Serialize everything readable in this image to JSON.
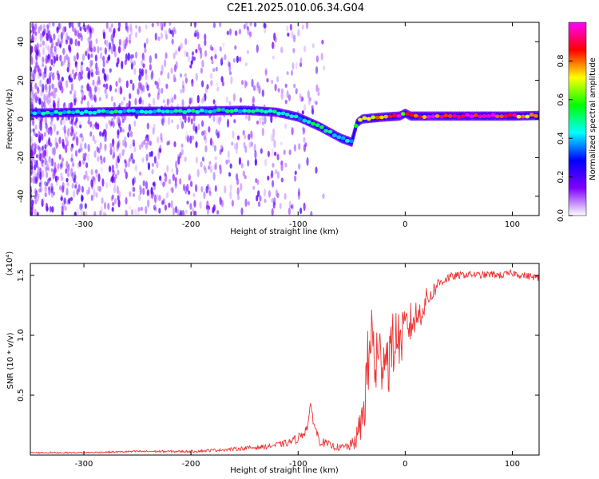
{
  "title": "C2E1.2025.010.06.34.G04",
  "chart_data": [
    {
      "type": "heatmap",
      "xlabel": "Height of straight line (km)",
      "ylabel": "Frequency (Hz)",
      "xlim": [
        -350,
        125
      ],
      "ylim": [
        -50,
        50
      ],
      "x_ticks": [
        -300,
        -200,
        -100,
        0,
        100
      ],
      "y_ticks": [
        -40,
        -20,
        0,
        20,
        40
      ],
      "colorbar": {
        "label": "Normalized spectral amplitude",
        "range": [
          0,
          1
        ],
        "ticks": [
          "0.0",
          "0.2",
          "0.4",
          "0.6",
          "0.8"
        ],
        "colors": [
          "#ffffff",
          "#8000ff",
          "#0000ff",
          "#00ffff",
          "#00ff00",
          "#ffff00",
          "#ff0000",
          "#ff00ff"
        ]
      },
      "ridge": {
        "x": [
          -350,
          -300,
          -250,
          -200,
          -150,
          -120,
          -100,
          -90,
          -80,
          -70,
          -60,
          -50,
          -45,
          -40,
          -20,
          -5,
          0,
          5,
          50,
          100,
          125
        ],
        "y": [
          3,
          3.5,
          4,
          4,
          4.5,
          3.5,
          1,
          -1.5,
          -4,
          -7,
          -10,
          -12,
          -2,
          0,
          1,
          1.5,
          3,
          1.5,
          1.5,
          1.5,
          1.8
        ],
        "amp": [
          0.45,
          0.5,
          0.45,
          0.5,
          0.5,
          0.5,
          0.45,
          0.5,
          0.55,
          0.5,
          0.45,
          0.4,
          0.55,
          0.8,
          0.9,
          0.95,
          0.7,
          0.95,
          0.95,
          0.95,
          0.85
        ]
      },
      "noise_region": [
        -350,
        -75
      ]
    },
    {
      "type": "line",
      "xlabel": "Height of straight line (km)",
      "ylabel": "SNR (10 * v/v)",
      "scale_label": "(x10⁴)",
      "xlim": [
        -350,
        125
      ],
      "ylim": [
        0,
        1.6
      ],
      "x_ticks": [
        -300,
        -200,
        -100,
        0,
        100
      ],
      "y_ticks": [
        0.5,
        1.0,
        1.5
      ],
      "y_tick_labels": [
        "0.5",
        "1.0",
        "1.5"
      ],
      "series": [
        {
          "color": "#ee3333",
          "x": [
            -350,
            -300,
            -250,
            -200,
            -160,
            -130,
            -110,
            -100,
            -92,
            -88,
            -84,
            -80,
            -70,
            -60,
            -50,
            -45,
            -40,
            -35,
            -32,
            -28,
            -24,
            -20,
            -16,
            -12,
            -8,
            -4,
            0,
            5,
            10,
            15,
            20,
            25,
            30,
            35,
            40,
            50,
            60,
            70,
            80,
            90,
            100,
            110,
            125
          ],
          "y": [
            0.02,
            0.02,
            0.03,
            0.03,
            0.05,
            0.07,
            0.1,
            0.14,
            0.22,
            0.4,
            0.22,
            0.12,
            0.08,
            0.06,
            0.08,
            0.15,
            0.3,
            0.7,
            1.0,
            0.8,
            0.75,
            0.9,
            0.8,
            0.9,
            1.0,
            0.95,
            1.05,
            1.1,
            1.15,
            1.2,
            1.3,
            1.35,
            1.42,
            1.46,
            1.48,
            1.5,
            1.51,
            1.5,
            1.51,
            1.5,
            1.52,
            1.5,
            1.48
          ],
          "noise": [
            0.006,
            0.006,
            0.008,
            0.01,
            0.015,
            0.02,
            0.03,
            0.04,
            0.05,
            0.05,
            0.05,
            0.04,
            0.03,
            0.03,
            0.05,
            0.1,
            0.18,
            0.35,
            0.4,
            0.4,
            0.35,
            0.3,
            0.3,
            0.28,
            0.25,
            0.22,
            0.2,
            0.18,
            0.15,
            0.12,
            0.1,
            0.08,
            0.06,
            0.05,
            0.04,
            0.03,
            0.03,
            0.03,
            0.03,
            0.03,
            0.03,
            0.03,
            0.03
          ]
        }
      ]
    }
  ]
}
